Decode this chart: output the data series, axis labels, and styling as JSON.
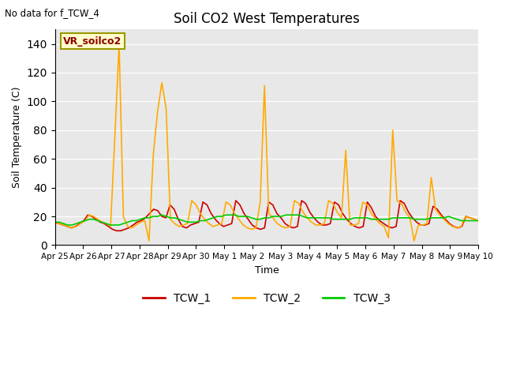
{
  "title": "Soil CO2 West Temperatures",
  "subtitle": "No data for f_TCW_4",
  "ylabel": "Soil Temperature (C)",
  "xlabel": "Time",
  "annotation": "VR_soilco2",
  "ylim": [
    0,
    150
  ],
  "yticks": [
    0,
    20,
    40,
    60,
    80,
    100,
    120,
    140
  ],
  "bg_color": "#e8e8e8",
  "legend": [
    "TCW_1",
    "TCW_2",
    "TCW_3"
  ],
  "line_colors": [
    "#cc0000",
    "#ffaa00",
    "#00cc00"
  ],
  "tcw1": [
    15,
    15,
    14,
    13,
    12,
    13,
    15,
    17,
    21,
    20,
    18,
    16,
    15,
    13,
    11,
    10,
    10,
    11,
    12,
    14,
    16,
    17,
    19,
    22,
    25,
    24,
    20,
    19,
    28,
    25,
    18,
    13,
    12,
    14,
    15,
    16,
    30,
    28,
    22,
    18,
    15,
    13,
    14,
    15,
    31,
    28,
    22,
    18,
    14,
    12,
    11,
    12,
    30,
    28,
    22,
    19,
    15,
    13,
    12,
    13,
    31,
    29,
    23,
    19,
    16,
    14,
    14,
    15,
    30,
    28,
    22,
    18,
    15,
    13,
    12,
    13,
    30,
    26,
    20,
    17,
    15,
    13,
    12,
    13,
    31,
    29,
    23,
    19,
    16,
    14,
    14,
    15,
    27,
    25,
    21,
    18,
    15,
    13,
    12,
    13,
    20,
    19,
    18,
    17
  ],
  "tcw2": [
    15,
    15,
    14,
    13,
    12,
    13,
    15,
    17,
    21,
    20,
    18,
    16,
    15,
    13,
    75,
    140,
    20,
    13,
    12,
    14,
    16,
    17,
    3,
    63,
    93,
    113,
    95,
    18,
    15,
    13,
    14,
    15,
    31,
    28,
    22,
    18,
    15,
    13,
    14,
    15,
    30,
    28,
    22,
    18,
    14,
    12,
    11,
    12,
    30,
    111,
    22,
    19,
    15,
    13,
    12,
    13,
    31,
    29,
    23,
    19,
    16,
    14,
    14,
    15,
    31,
    29,
    23,
    19,
    66,
    14,
    14,
    15,
    30,
    28,
    22,
    18,
    15,
    13,
    5,
    80,
    31,
    29,
    23,
    19,
    3,
    14,
    14,
    15,
    47,
    25,
    21,
    18,
    15,
    13,
    12,
    13,
    20,
    19,
    18,
    17
  ],
  "tcw3": [
    16,
    16,
    15,
    14,
    14,
    15,
    16,
    17,
    18,
    18,
    17,
    16,
    15,
    14,
    14,
    14,
    15,
    16,
    17,
    17,
    18,
    19,
    19,
    20,
    20,
    21,
    20,
    19,
    19,
    18,
    17,
    16,
    16,
    16,
    17,
    17,
    18,
    19,
    20,
    20,
    21,
    21,
    21,
    20,
    20,
    20,
    19,
    18,
    18,
    19,
    19,
    20,
    20,
    20,
    21,
    21,
    21,
    21,
    20,
    19,
    19,
    19,
    19,
    19,
    19,
    18,
    18,
    18,
    18,
    18,
    19,
    19,
    19,
    19,
    18,
    18,
    18,
    18,
    18,
    19,
    19,
    19,
    19,
    19,
    18,
    18,
    18,
    18,
    19,
    19,
    19,
    19,
    20,
    19,
    18,
    17,
    17,
    17,
    17,
    17
  ],
  "xtick_positions": [
    0,
    6.5,
    13,
    19.5,
    26,
    32.5,
    39,
    45.5,
    52,
    58.5,
    65,
    71.5,
    78,
    84.5,
    91,
    97.5
  ],
  "xtick_labels": [
    "Apr 25",
    "Apr 26",
    "Apr 27",
    "Apr 28",
    "Apr 29",
    "Apr 30",
    "May 1",
    "May 2",
    "May 3",
    "May 4",
    "May 5",
    "May 6",
    "May 7",
    "May 8",
    "May 9",
    "May 10"
  ]
}
